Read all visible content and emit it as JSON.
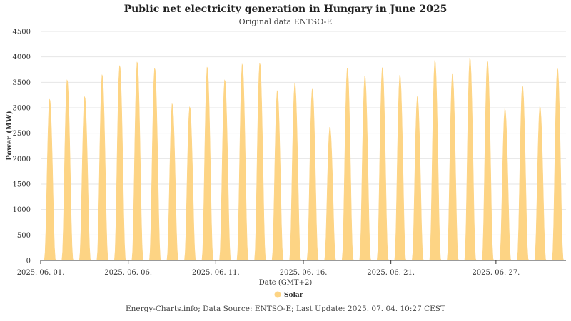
{
  "title": "Public net electricity generation in Hungary in June 2025",
  "subtitle": "Original data ENTSO-E",
  "footer": "Energy-Charts.info; Data Source: ENTSO-E; Last Update: 2025. 07. 04. 10:27 CEST",
  "colors": {
    "solar": "#fdd484",
    "grid": "#e6e6e6",
    "axis": "#333333"
  },
  "chart_data": {
    "type": "area",
    "title": "Public net electricity generation in Hungary in June 2025",
    "subtitle": "Original data ENTSO-E",
    "xlabel": "Date (GMT+2)",
    "ylabel": "Power (MW)",
    "ylim": [
      0,
      4500
    ],
    "yticks": [
      0,
      500,
      1000,
      1500,
      2000,
      2500,
      3000,
      3500,
      4000,
      4500
    ],
    "xlim": [
      "2025-06-01 00:00",
      "2025-07-01 00:00"
    ],
    "xtick_dates": [
      "2025-06-01",
      "2025-06-06",
      "2025-06-11",
      "2025-06-16",
      "2025-06-21",
      "2025-06-27"
    ],
    "xtick_labels": [
      "2025. 06. 01.",
      "2025. 06. 06.",
      "2025. 06. 11.",
      "2025. 06. 16.",
      "2025. 06. 21.",
      "2025. 06. 27."
    ],
    "grid": true,
    "legend_position": "bottom-center",
    "series": [
      {
        "name": "Solar",
        "color": "#fdd484",
        "daily_profile": {
          "hours": [
            5.0,
            6.0,
            7.0,
            8.0,
            9.0,
            10.0,
            11.0,
            12.0,
            13.0,
            14.0,
            15.0,
            16.0,
            17.0,
            18.0,
            19.0,
            20.0,
            21.0
          ],
          "shape": [
            0,
            0.05,
            0.18,
            0.38,
            0.6,
            0.79,
            0.93,
            1.0,
            0.99,
            0.92,
            0.79,
            0.62,
            0.42,
            0.22,
            0.08,
            0.01,
            0
          ]
        },
        "daily_peaks": [
          {
            "date": "2025-06-01",
            "peak": 3170
          },
          {
            "date": "2025-06-02",
            "peak": 3550
          },
          {
            "date": "2025-06-03",
            "peak": 3220
          },
          {
            "date": "2025-06-04",
            "peak": 3650
          },
          {
            "date": "2025-06-05",
            "peak": 3830
          },
          {
            "date": "2025-06-06",
            "peak": 3900
          },
          {
            "date": "2025-06-07",
            "peak": 3780
          },
          {
            "date": "2025-06-08",
            "peak": 3080
          },
          {
            "date": "2025-06-09",
            "peak": 3020
          },
          {
            "date": "2025-06-10",
            "peak": 3800
          },
          {
            "date": "2025-06-11",
            "peak": 3550
          },
          {
            "date": "2025-06-12",
            "peak": 3860
          },
          {
            "date": "2025-06-13",
            "peak": 3880
          },
          {
            "date": "2025-06-14",
            "peak": 3340
          },
          {
            "date": "2025-06-15",
            "peak": 3480
          },
          {
            "date": "2025-06-16",
            "peak": 3370
          },
          {
            "date": "2025-06-17",
            "peak": 2620
          },
          {
            "date": "2025-06-18",
            "peak": 3780
          },
          {
            "date": "2025-06-19",
            "peak": 3620
          },
          {
            "date": "2025-06-20",
            "peak": 3790
          },
          {
            "date": "2025-06-21",
            "peak": 3640
          },
          {
            "date": "2025-06-22",
            "peak": 3220
          },
          {
            "date": "2025-06-23",
            "peak": 3930
          },
          {
            "date": "2025-06-24",
            "peak": 3660
          },
          {
            "date": "2025-06-25",
            "peak": 3980
          },
          {
            "date": "2025-06-26",
            "peak": 3930
          },
          {
            "date": "2025-06-27",
            "peak": 2980
          },
          {
            "date": "2025-06-28",
            "peak": 3440
          },
          {
            "date": "2025-06-29",
            "peak": 3030
          },
          {
            "date": "2025-06-30",
            "peak": 3780
          }
        ]
      }
    ]
  }
}
